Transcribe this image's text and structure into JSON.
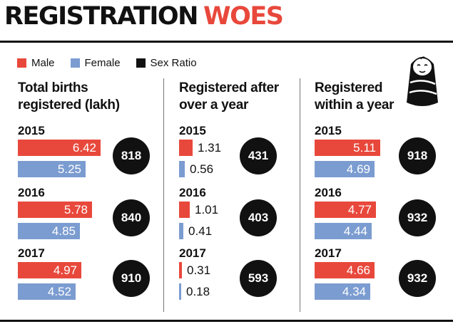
{
  "header": {
    "title_main": "REGISTRATION",
    "title_accent": "WOES"
  },
  "legend": {
    "male": "Male",
    "female": "Female",
    "ratio": "Sex Ratio"
  },
  "colors": {
    "male": "#e8483b",
    "female": "#7b9cd0",
    "ratio": "#111111",
    "title_accent": "#e8483b"
  },
  "icon": "swaddled-baby-icon",
  "chart_data": [
    {
      "type": "bar",
      "title": "Total births registered (lakh)",
      "title_lines": [
        "Total births",
        "registered (lakh)"
      ],
      "years": [
        "2015",
        "2016",
        "2017"
      ],
      "series": [
        {
          "name": "Male",
          "values": [
            6.42,
            5.78,
            4.97
          ]
        },
        {
          "name": "Female",
          "values": [
            5.25,
            4.85,
            4.52
          ]
        }
      ],
      "sex_ratio": [
        818,
        840,
        910
      ]
    },
    {
      "type": "bar",
      "title": "Registered after over a year",
      "title_lines": [
        "Registered after",
        "over a year"
      ],
      "years": [
        "2015",
        "2016",
        "2017"
      ],
      "series": [
        {
          "name": "Male",
          "values": [
            1.31,
            1.01,
            0.31
          ]
        },
        {
          "name": "Female",
          "values": [
            0.56,
            0.41,
            0.18
          ]
        }
      ],
      "sex_ratio": [
        431,
        403,
        593
      ]
    },
    {
      "type": "bar",
      "title": "Registered within a year",
      "title_lines": [
        "Registered",
        "within a year"
      ],
      "years": [
        "2015",
        "2016",
        "2017"
      ],
      "series": [
        {
          "name": "Male",
          "values": [
            5.11,
            4.77,
            4.66
          ]
        },
        {
          "name": "Female",
          "values": [
            4.69,
            4.44,
            4.34
          ]
        }
      ],
      "sex_ratio": [
        918,
        932,
        932
      ]
    }
  ]
}
